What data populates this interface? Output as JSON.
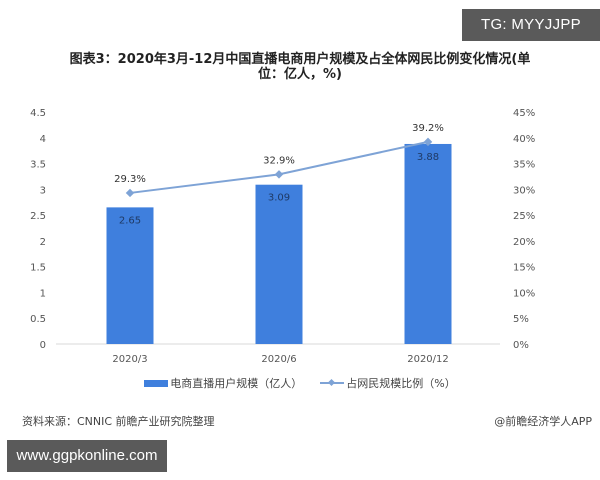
{
  "badge_top": "TG: MYYJJPP",
  "title_line1": "图表3：2020年3月-12月中国直播电商用户规模及占全体网民比例变化情况(单",
  "title_line2": "位：亿人，%)",
  "footer": {
    "source": "资料来源：CNNIC 前瞻产业研究院整理",
    "credit": "@前瞻经济学人APP",
    "url_badge": "www.ggpkonline.com"
  },
  "legend": {
    "bar_label": "电商直播用户规模（亿人）",
    "line_label": "占网民规模比例（%）"
  },
  "colors": {
    "bar": "#3f7fdd",
    "line": "#7ea3d6",
    "axis": "#d9d9d9",
    "badge_bg": "#5a5a5a"
  },
  "chart_data": {
    "type": "bar",
    "title": "图表3：2020年3月-12月中国直播电商用户规模及占全体网民比例变化情况(单位：亿人，%)",
    "categories": [
      "2020/3",
      "2020/6",
      "2020/12"
    ],
    "series": [
      {
        "name": "电商直播用户规模（亿人）",
        "type": "bar",
        "axis": "left",
        "values": [
          2.65,
          3.09,
          3.88
        ],
        "labels": [
          "2.65",
          "3.09",
          "3.88"
        ]
      },
      {
        "name": "占网民规模比例（%）",
        "type": "line",
        "axis": "right",
        "values": [
          29.3,
          32.9,
          39.2
        ],
        "labels": [
          "29.3%",
          "32.9%",
          "39.2%"
        ]
      }
    ],
    "left_axis": {
      "ylim": [
        0,
        4.5
      ],
      "ticks": [
        "0",
        "0.5",
        "1",
        "1.5",
        "2",
        "2.5",
        "3",
        "3.5",
        "4",
        "4.5"
      ]
    },
    "right_axis": {
      "ylim": [
        0,
        45
      ],
      "ticks": [
        "0%",
        "5%",
        "10%",
        "15%",
        "20%",
        "25%",
        "30%",
        "35%",
        "40%",
        "45%"
      ]
    },
    "grid": false,
    "legend_position": "bottom"
  }
}
